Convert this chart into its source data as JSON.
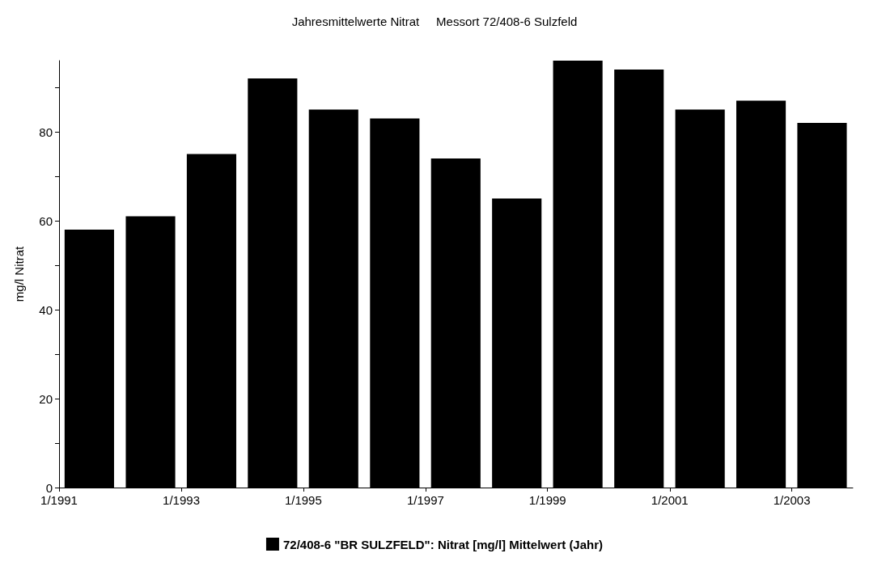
{
  "chart_data": {
    "type": "bar",
    "title": "Jahresmittelwerte Nitrat     Messort 72/408-6 Sulzfeld",
    "ylabel": "mg/l Nitrat",
    "x": [
      "1991-07",
      "1992-07",
      "1993-07",
      "1994-07",
      "1995-07",
      "1996-07",
      "1997-07",
      "1998-07",
      "1999-07",
      "2000-07",
      "2001-07",
      "2002-07",
      "2003-07"
    ],
    "series": [
      {
        "name": "72/408-6 \"BR SULZFELD\": Nitrat [mg/l] Mittelwert (Jahr)",
        "color": "#000000",
        "values": [
          58,
          61,
          75,
          92,
          85,
          83,
          74,
          65,
          96,
          94,
          85,
          87,
          82
        ]
      }
    ],
    "xlim": [
      "1991-01",
      "2004-01"
    ],
    "xticks": [
      {
        "value": "1991-01",
        "label": "1/1991"
      },
      {
        "value": "1993-01",
        "label": "1/1993"
      },
      {
        "value": "1995-01",
        "label": "1/1995"
      },
      {
        "value": "1997-01",
        "label": "1/1997"
      },
      {
        "value": "1999-01",
        "label": "1/1999"
      },
      {
        "value": "2001-01",
        "label": "1/2001"
      },
      {
        "value": "2003-01",
        "label": "1/2003"
      }
    ],
    "ylim": [
      0,
      96
    ],
    "yticks": [
      0,
      {
        "value": 10,
        "label": null
      },
      20,
      {
        "value": 30,
        "label": null
      },
      40,
      {
        "value": 50,
        "label": null
      },
      60,
      {
        "value": 70,
        "label": null
      },
      80,
      {
        "value": 90,
        "label": null
      }
    ],
    "grid": false,
    "legend": "bottom"
  }
}
